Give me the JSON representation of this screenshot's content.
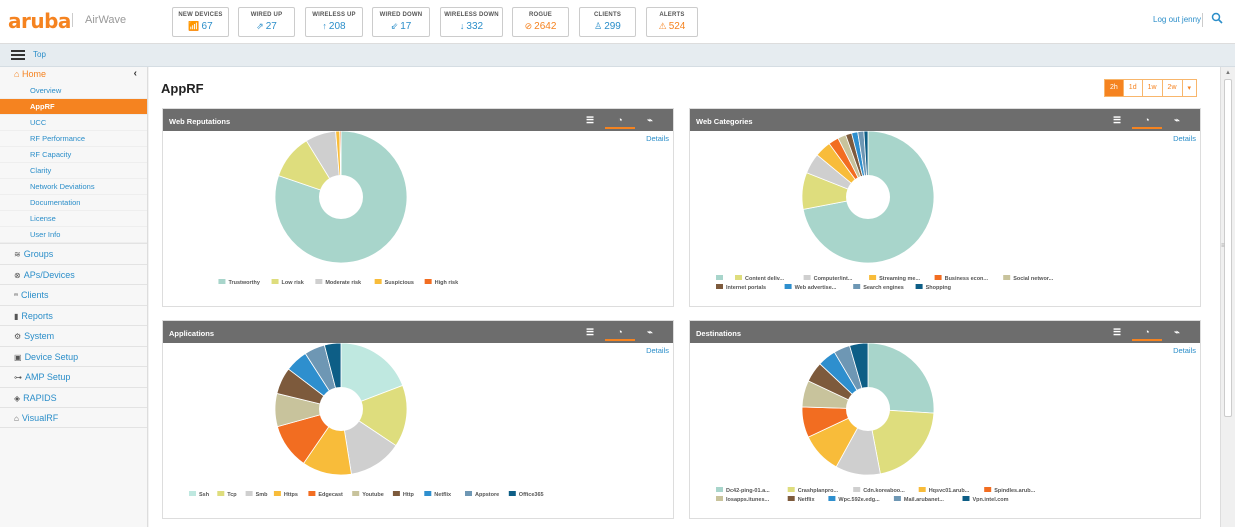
{
  "brand": {
    "logo": "aruba",
    "product": "AirWave",
    "accent": "#f58320",
    "link": "#2b8ec9"
  },
  "header": {
    "stats": [
      {
        "label": "NEW DEVICES",
        "icon": "📶",
        "value": "67"
      },
      {
        "label": "WIRED UP",
        "icon": "⇗",
        "value": "27"
      },
      {
        "label": "WIRELESS UP",
        "icon": "↑",
        "value": "208"
      },
      {
        "label": "WIRED DOWN",
        "icon": "⇙",
        "value": "17"
      },
      {
        "label": "WIRELESS DOWN",
        "icon": "↓",
        "value": "332"
      },
      {
        "label": "ROGUE",
        "icon": "⊘",
        "value": "2642"
      },
      {
        "label": "CLIENTS",
        "icon": "♙",
        "value": "299"
      },
      {
        "label": "ALERTS",
        "icon": "⚠",
        "value": "524"
      }
    ],
    "logout": "Log out jenny",
    "search_icon": "search-icon"
  },
  "subbar": {
    "top_label": "Top"
  },
  "sidebar": {
    "home": "Home",
    "home_items": [
      "Overview",
      "AppRF",
      "UCC",
      "RF Performance",
      "RF Capacity",
      "Clarity",
      "Network Deviations",
      "Documentation",
      "License",
      "User Info"
    ],
    "active_item": "AppRF",
    "nav": [
      {
        "label": "Groups",
        "icon": "≋"
      },
      {
        "label": "APs/Devices",
        "icon": "⊗"
      },
      {
        "label": "Clients",
        "icon": "ꭩ"
      },
      {
        "label": "Reports",
        "icon": "▮"
      },
      {
        "label": "System",
        "icon": "⚙"
      },
      {
        "label": "Device Setup",
        "icon": "▣"
      },
      {
        "label": "AMP Setup",
        "icon": "⊶"
      },
      {
        "label": "RAPIDS",
        "icon": "◈"
      },
      {
        "label": "VisualRF",
        "icon": "⌂"
      }
    ]
  },
  "page": {
    "title": "AppRF",
    "ranges": [
      "2h",
      "1d",
      "1w",
      "2w",
      "▾"
    ],
    "active_range": "2h",
    "details_label": "Details"
  },
  "panels": [
    {
      "title": "Web Reputations",
      "legend": [
        "Trustworthy",
        "Low risk",
        "Moderate risk",
        "Suspicious",
        "High risk"
      ],
      "slices": [
        {
          "label": "Trustworthy",
          "value": 80.5,
          "color": "#a8d5cb"
        },
        {
          "label": "Low risk",
          "value": 11,
          "color": "#dedd7d"
        },
        {
          "label": "Moderate risk",
          "value": 7.5,
          "color": "#cfcfcf"
        },
        {
          "label": "Suspicious",
          "value": 1,
          "color": "#f8bc3a"
        },
        {
          "label": "High risk",
          "value": 0.3,
          "color": "#f26d21"
        }
      ]
    },
    {
      "title": "Web Categories",
      "legend": [
        "",
        "Content deliv...",
        "Computer/int...",
        "Streaming me...",
        "Business econ...",
        "Social networ...",
        "Internet portals",
        "Web advertise...",
        "Search engines",
        "Shopping"
      ],
      "slices": [
        {
          "label": "",
          "value": 72,
          "color": "#a8d5cb"
        },
        {
          "label": "Content deliv...",
          "value": 9,
          "color": "#dedd7d"
        },
        {
          "label": "Computer/int...",
          "value": 5,
          "color": "#cfcfcf"
        },
        {
          "label": "Streaming me...",
          "value": 4,
          "color": "#f8bc3a"
        },
        {
          "label": "Business econ...",
          "value": 2.5,
          "color": "#f26d21"
        },
        {
          "label": "Social networ...",
          "value": 2,
          "color": "#c8c39c"
        },
        {
          "label": "Internet portals",
          "value": 1.5,
          "color": "#7d5a3c"
        },
        {
          "label": "Web advertise...",
          "value": 1.5,
          "color": "#2e8fce"
        },
        {
          "label": "Search engines",
          "value": 1.5,
          "color": "#6e97b4"
        },
        {
          "label": "Shopping",
          "value": 1,
          "color": "#0d5e86"
        }
      ]
    },
    {
      "title": "Applications",
      "legend": [
        "Ssh",
        "Tcp",
        "Smb",
        "Https",
        "Edgecast",
        "Youtube",
        "Http",
        "Netflix",
        "Appstore",
        "Office365"
      ],
      "slices": [
        {
          "label": "Ssh",
          "value": 19,
          "color": "#bfe8e0"
        },
        {
          "label": "Tcp",
          "value": 15,
          "color": "#dedd7d"
        },
        {
          "label": "Smb",
          "value": 13,
          "color": "#cfcfcf"
        },
        {
          "label": "Https",
          "value": 12,
          "color": "#f8bc3a"
        },
        {
          "label": "Edgecast",
          "value": 11,
          "color": "#f26d21"
        },
        {
          "label": "Youtube",
          "value": 8,
          "color": "#c8c39c"
        },
        {
          "label": "Http",
          "value": 6.5,
          "color": "#7d5a3c"
        },
        {
          "label": "Netflix",
          "value": 5.5,
          "color": "#2e8fce"
        },
        {
          "label": "Appstore",
          "value": 5,
          "color": "#6e97b4"
        },
        {
          "label": "Office365",
          "value": 4,
          "color": "#0d5e86"
        }
      ]
    },
    {
      "title": "Destinations",
      "legend": [
        "Dc42-ping-01.a...",
        "Crashplanpro...",
        "Cdn.koreaboo...",
        "Hqsvc01.arub...",
        "Spindles.arub...",
        "Iosapps.itunes...",
        "Netflix",
        "Wpc.592e.edg...",
        "Mail.arubanet...",
        "Vpn.intel.com"
      ],
      "slices": [
        {
          "label": "Dc42-ping-01.a...",
          "value": 26,
          "color": "#a8d5cb"
        },
        {
          "label": "Crashplanpro...",
          "value": 21,
          "color": "#dedd7d"
        },
        {
          "label": "Cdn.koreaboo...",
          "value": 11,
          "color": "#cfcfcf"
        },
        {
          "label": "Hqsvc01.arub...",
          "value": 10,
          "color": "#f8bc3a"
        },
        {
          "label": "Spindles.arub...",
          "value": 7.5,
          "color": "#f26d21"
        },
        {
          "label": "Iosapps.itunes...",
          "value": 6.5,
          "color": "#c8c39c"
        },
        {
          "label": "Netflix",
          "value": 5,
          "color": "#7d5a3c"
        },
        {
          "label": "Wpc.592e.edg...",
          "value": 4.5,
          "color": "#2e8fce"
        },
        {
          "label": "Mail.arubanet...",
          "value": 4,
          "color": "#6e97b4"
        },
        {
          "label": "Vpn.intel.com",
          "value": 4.5,
          "color": "#0d5e86"
        }
      ]
    }
  ]
}
